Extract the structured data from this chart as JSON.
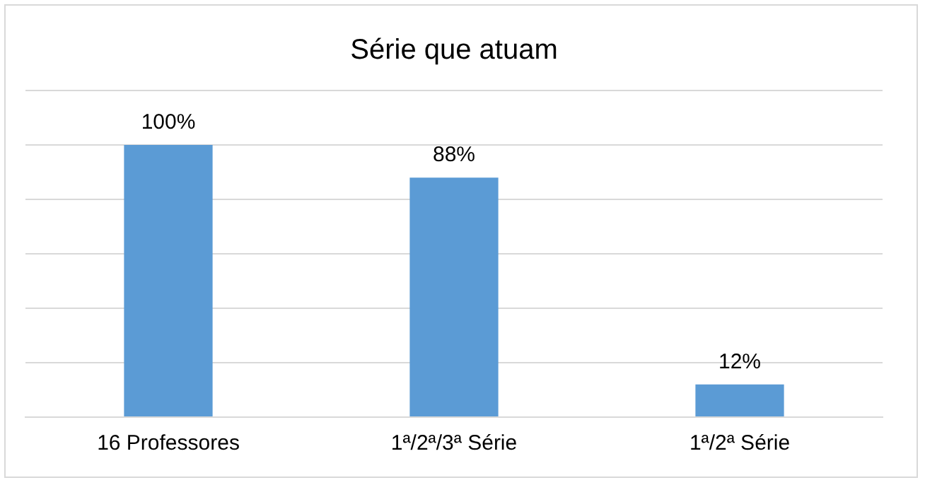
{
  "chart_data": {
    "type": "bar",
    "title": "Série que atuam",
    "categories": [
      "16 Professores",
      "1ª/2ª/3ª Série",
      "1ª/2ª Série"
    ],
    "values": [
      100,
      88,
      12
    ],
    "value_labels": [
      "100%",
      "88%",
      "12%"
    ],
    "color": "#5b9bd5",
    "ylim": [
      0,
      120
    ],
    "yticks": [
      {
        "value": 0,
        "label": null
      },
      {
        "value": 20,
        "label": null
      },
      {
        "value": 40,
        "label": null
      },
      {
        "value": 60,
        "label": null
      },
      {
        "value": 80,
        "label": null
      },
      {
        "value": 100,
        "label": null
      },
      {
        "value": 120,
        "label": null
      }
    ],
    "grid": "y",
    "tick_labels": "x"
  }
}
